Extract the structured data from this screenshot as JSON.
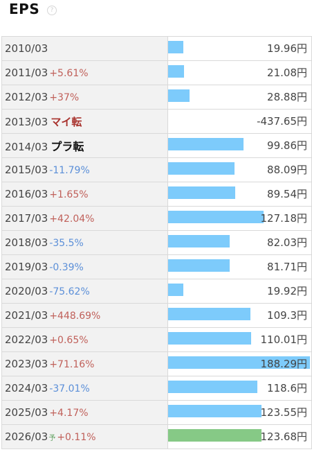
{
  "section": {
    "title": "EPS",
    "help_icon": "?"
  },
  "colors": {
    "bar": "#7dcbfb",
    "forecast_bar": "#86c986"
  },
  "max_value": 188.29,
  "rows": [
    {
      "year": "2010/03",
      "change": "",
      "change_dir": "",
      "tag": "",
      "tag_type": "",
      "forecast": "",
      "value": 19.96,
      "display": "19.96円"
    },
    {
      "year": "2011/03",
      "change": "+5.61%",
      "change_dir": "up",
      "tag": "",
      "tag_type": "",
      "forecast": "",
      "value": 21.08,
      "display": "21.08円"
    },
    {
      "year": "2012/03",
      "change": "+37%",
      "change_dir": "up",
      "tag": "",
      "tag_type": "",
      "forecast": "",
      "value": 28.88,
      "display": "28.88円"
    },
    {
      "year": "2013/03",
      "change": "",
      "change_dir": "",
      "tag": "マイ転",
      "tag_type": "neg",
      "forecast": "",
      "value": -437.65,
      "display": "-437.65円"
    },
    {
      "year": "2014/03",
      "change": "",
      "change_dir": "",
      "tag": "プラ転",
      "tag_type": "pos",
      "forecast": "",
      "value": 99.86,
      "display": "99.86円"
    },
    {
      "year": "2015/03",
      "change": "-11.79%",
      "change_dir": "down",
      "tag": "",
      "tag_type": "",
      "forecast": "",
      "value": 88.09,
      "display": "88.09円"
    },
    {
      "year": "2016/03",
      "change": "+1.65%",
      "change_dir": "up",
      "tag": "",
      "tag_type": "",
      "forecast": "",
      "value": 89.54,
      "display": "89.54円"
    },
    {
      "year": "2017/03",
      "change": "+42.04%",
      "change_dir": "up",
      "tag": "",
      "tag_type": "",
      "forecast": "",
      "value": 127.18,
      "display": "127.18円"
    },
    {
      "year": "2018/03",
      "change": "-35.5%",
      "change_dir": "down",
      "tag": "",
      "tag_type": "",
      "forecast": "",
      "value": 82.03,
      "display": "82.03円"
    },
    {
      "year": "2019/03",
      "change": "-0.39%",
      "change_dir": "down",
      "tag": "",
      "tag_type": "",
      "forecast": "",
      "value": 81.71,
      "display": "81.71円"
    },
    {
      "year": "2020/03",
      "change": "-75.62%",
      "change_dir": "down",
      "tag": "",
      "tag_type": "",
      "forecast": "",
      "value": 19.92,
      "display": "19.92円"
    },
    {
      "year": "2021/03",
      "change": "+448.69%",
      "change_dir": "up",
      "tag": "",
      "tag_type": "",
      "forecast": "",
      "value": 109.3,
      "display": "109.3円"
    },
    {
      "year": "2022/03",
      "change": "+0.65%",
      "change_dir": "up",
      "tag": "",
      "tag_type": "",
      "forecast": "",
      "value": 110.01,
      "display": "110.01円"
    },
    {
      "year": "2023/03",
      "change": "+71.16%",
      "change_dir": "up",
      "tag": "",
      "tag_type": "",
      "forecast": "",
      "value": 188.29,
      "display": "188.29円"
    },
    {
      "year": "2024/03",
      "change": "-37.01%",
      "change_dir": "down",
      "tag": "",
      "tag_type": "",
      "forecast": "",
      "value": 118.6,
      "display": "118.6円"
    },
    {
      "year": "2025/03",
      "change": "+4.17%",
      "change_dir": "up",
      "tag": "",
      "tag_type": "",
      "forecast": "",
      "value": 123.55,
      "display": "123.55円"
    },
    {
      "year": "2026/03",
      "change": "+0.11%",
      "change_dir": "up",
      "tag": "",
      "tag_type": "",
      "forecast": "予",
      "value": 123.68,
      "display": "123.68円"
    }
  ]
}
